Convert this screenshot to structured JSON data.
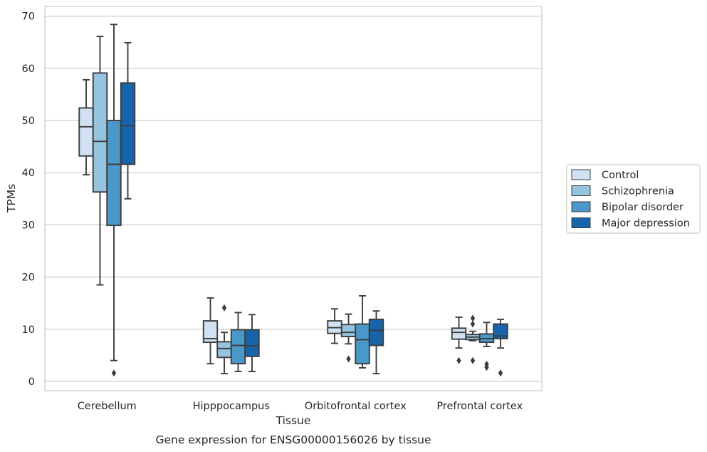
{
  "chart_data": {
    "type": "box",
    "title": "",
    "caption": "Gene expression for ENSG00000156026 by tissue",
    "xlabel": "Tissue",
    "ylabel": "TPMs",
    "ylim": [
      -1.5,
      72
    ],
    "yticks": [
      0,
      10,
      20,
      30,
      40,
      50,
      60,
      70
    ],
    "grid": "horizontal",
    "legend_position": "right",
    "categories": [
      "Cerebellum",
      "Hipppocampus",
      "Orbitofrontal cortex",
      "Prefrontal cortex"
    ],
    "series": [
      {
        "name": "Control",
        "color": "#d0e1f2",
        "boxes": [
          {
            "whislo": 39.6,
            "q1": 43.2,
            "med": 48.8,
            "q3": 52.4,
            "whishi": 57.8,
            "fliers": []
          },
          {
            "whislo": 3.4,
            "q1": 7.5,
            "med": 8.2,
            "q3": 11.6,
            "whishi": 16.0,
            "fliers": []
          },
          {
            "whislo": 7.3,
            "q1": 9.2,
            "med": 10.3,
            "q3": 11.6,
            "whishi": 13.9,
            "fliers": []
          },
          {
            "whislo": 6.4,
            "q1": 8.1,
            "med": 9.4,
            "q3": 10.2,
            "whishi": 12.3,
            "fliers": [
              4.0
            ]
          }
        ]
      },
      {
        "name": "Schizophrenia",
        "color": "#94c4df",
        "boxes": [
          {
            "whislo": 18.5,
            "q1": 36.3,
            "med": 46.0,
            "q3": 59.1,
            "whishi": 66.1,
            "fliers": []
          },
          {
            "whislo": 1.5,
            "q1": 4.6,
            "med": 6.3,
            "q3": 7.6,
            "whishi": 9.4,
            "fliers": [
              14.1
            ]
          },
          {
            "whislo": 7.2,
            "q1": 8.6,
            "med": 9.4,
            "q3": 10.9,
            "whishi": 12.9,
            "fliers": [
              4.3
            ]
          },
          {
            "whislo": 7.8,
            "q1": 8.0,
            "med": 8.5,
            "q3": 9.0,
            "whishi": 9.6,
            "fliers": [
              4.0,
              11.0,
              12.1
            ]
          }
        ]
      },
      {
        "name": "Bipolar disorder",
        "color": "#4a98c9",
        "boxes": [
          {
            "whislo": 4.0,
            "q1": 29.9,
            "med": 41.6,
            "q3": 50.0,
            "whishi": 68.4,
            "fliers": [
              1.6
            ]
          },
          {
            "whislo": 1.9,
            "q1": 3.4,
            "med": 6.9,
            "q3": 9.9,
            "whishi": 13.2,
            "fliers": []
          },
          {
            "whislo": 2.6,
            "q1": 3.4,
            "med": 8.0,
            "q3": 11.0,
            "whishi": 16.4,
            "fliers": []
          },
          {
            "whislo": 6.7,
            "q1": 7.5,
            "med": 8.2,
            "q3": 9.1,
            "whishi": 11.3,
            "fliers": [
              2.7,
              3.3
            ]
          }
        ]
      },
      {
        "name": "Major depression",
        "color": "#1764ab",
        "boxes": [
          {
            "whislo": 35.0,
            "q1": 41.6,
            "med": 49.0,
            "q3": 57.2,
            "whishi": 64.9,
            "fliers": []
          },
          {
            "whislo": 1.9,
            "q1": 4.8,
            "med": 6.8,
            "q3": 9.9,
            "whishi": 12.8,
            "fliers": []
          },
          {
            "whislo": 1.5,
            "q1": 6.9,
            "med": 9.8,
            "q3": 11.9,
            "whishi": 13.5,
            "fliers": []
          },
          {
            "whislo": 6.4,
            "q1": 8.2,
            "med": 8.7,
            "q3": 11.0,
            "whishi": 11.9,
            "fliers": [
              1.6
            ]
          }
        ]
      }
    ]
  }
}
